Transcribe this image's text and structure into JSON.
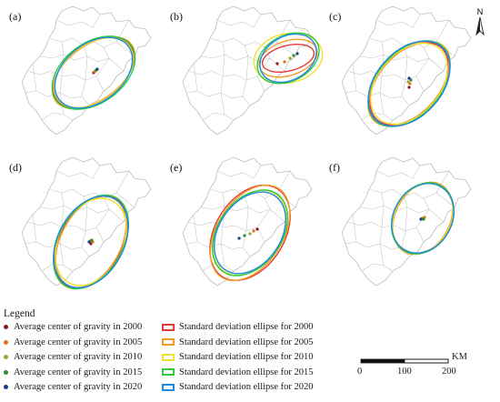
{
  "panels": [
    {
      "label": "(a)",
      "ellipses": [
        {
          "year": "2000",
          "rot": -38,
          "rx": 50,
          "ry": 31
        },
        {
          "year": "2005",
          "rot": -37,
          "rx": 52,
          "ry": 30
        },
        {
          "year": "2010",
          "rot": -37,
          "rx": 49,
          "ry": 31
        },
        {
          "year": "2015",
          "rot": -36,
          "rx": 51,
          "ry": 33
        },
        {
          "year": "2020",
          "rot": -38,
          "rx": 48,
          "ry": 32
        }
      ],
      "centers": [
        [
          0,
          0
        ],
        [
          1,
          -1
        ],
        [
          2,
          -2
        ],
        [
          3,
          -3
        ],
        [
          4,
          -4
        ]
      ]
    },
    {
      "label": "(b)",
      "ellipses": [
        {
          "year": "2000",
          "rot": -14,
          "rx": 29,
          "ry": 14
        },
        {
          "year": "2005",
          "rot": -18,
          "rx": 33,
          "ry": 19
        },
        {
          "year": "2010",
          "rot": -12,
          "rx": 38,
          "ry": 27
        },
        {
          "year": "2015",
          "rot": -28,
          "rx": 36,
          "ry": 25
        },
        {
          "year": "2020",
          "rot": -30,
          "rx": 33,
          "ry": 24
        }
      ],
      "centers": [
        [
          -12,
          6
        ],
        [
          -4,
          4
        ],
        [
          2,
          0
        ],
        [
          6,
          -3
        ],
        [
          10,
          -5
        ]
      ]
    },
    {
      "label": "(c)",
      "ellipses": [
        {
          "year": "2000",
          "rot": -48,
          "rx": 53,
          "ry": 33
        },
        {
          "year": "2005",
          "rot": -47,
          "rx": 56,
          "ry": 33
        },
        {
          "year": "2010",
          "rot": -49,
          "rx": 51,
          "ry": 34
        },
        {
          "year": "2015",
          "rot": -48,
          "rx": 55,
          "ry": 35
        },
        {
          "year": "2020",
          "rot": -48,
          "rx": 54,
          "ry": 36
        }
      ],
      "centers": [
        [
          0,
          4
        ],
        [
          1,
          0
        ],
        [
          -1,
          -2
        ],
        [
          2,
          -4
        ],
        [
          0,
          -6
        ]
      ]
    },
    {
      "label": "(d)",
      "ellipses": [
        {
          "year": "2000",
          "rot": -60,
          "rx": 55,
          "ry": 34
        },
        {
          "year": "2005",
          "rot": -62,
          "rx": 54,
          "ry": 33
        },
        {
          "year": "2010",
          "rot": -62,
          "rx": 51,
          "ry": 35
        },
        {
          "year": "2015",
          "rot": -60,
          "rx": 56,
          "ry": 35
        },
        {
          "year": "2020",
          "rot": -61,
          "rx": 54,
          "ry": 36
        }
      ],
      "centers": [
        [
          0,
          2
        ],
        [
          2,
          0
        ],
        [
          -1,
          -1
        ],
        [
          1,
          -2
        ],
        [
          -2,
          0
        ]
      ]
    },
    {
      "label": "(e)",
      "ellipses": [
        {
          "year": "2000",
          "rot": -58,
          "rx": 57,
          "ry": 38
        },
        {
          "year": "2005",
          "rot": -57,
          "rx": 58,
          "ry": 36
        },
        {
          "year": "2010",
          "rot": -56,
          "rx": 51,
          "ry": 35
        },
        {
          "year": "2015",
          "rot": -55,
          "rx": 52,
          "ry": 35
        },
        {
          "year": "2020",
          "rot": -56,
          "rx": 49,
          "ry": 34
        }
      ],
      "centers": [
        [
          8,
          -4
        ],
        [
          4,
          -2
        ],
        [
          0,
          1
        ],
        [
          -6,
          3
        ],
        [
          -12,
          6
        ]
      ]
    },
    {
      "label": "(f)",
      "ellipses": [
        {
          "year": "2000",
          "rot": -62,
          "rx": 41,
          "ry": 31
        },
        {
          "year": "2005",
          "rot": -62,
          "rx": 42,
          "ry": 30
        },
        {
          "year": "2010",
          "rot": -61,
          "rx": 40,
          "ry": 31
        },
        {
          "year": "2015",
          "rot": -61,
          "rx": 41,
          "ry": 32
        },
        {
          "year": "2020",
          "rot": -60,
          "rx": 40,
          "ry": 32
        }
      ],
      "centers": [
        [
          0,
          0
        ],
        [
          2,
          -1
        ],
        [
          -1,
          0
        ],
        [
          1,
          1
        ],
        [
          -2,
          1
        ]
      ]
    }
  ],
  "years": [
    "2000",
    "2005",
    "2010",
    "2015",
    "2020"
  ],
  "colors": {
    "2000": "#e53935",
    "2005": "#f39c2a",
    "2010": "#f0e030",
    "2015": "#2ecc40",
    "2020": "#1e88e5"
  },
  "dot_colors": {
    "2000": "#8b1a1a",
    "2005": "#e07020",
    "2010": "#a0a030",
    "2015": "#2e8b2e",
    "2020": "#1a3a8a"
  },
  "north_label": "N",
  "legend": {
    "title": "Legend",
    "centers": [
      "Average center of gravity in 2000",
      "Average center of gravity in 2005",
      "Average center of gravity in 2010",
      "Average center of gravity in 2015",
      "Average center of gravity in 2020"
    ],
    "ellipses": [
      "Standard deviation ellipse for 2000",
      "Standard deviation ellipse for 2005",
      "Standard deviation ellipse for 2010",
      "Standard deviation ellipse for 2015",
      "Standard deviation ellipse for 2020"
    ]
  },
  "scale_bar": {
    "unit": "KM",
    "ticks": [
      "0",
      "100",
      "200"
    ]
  }
}
